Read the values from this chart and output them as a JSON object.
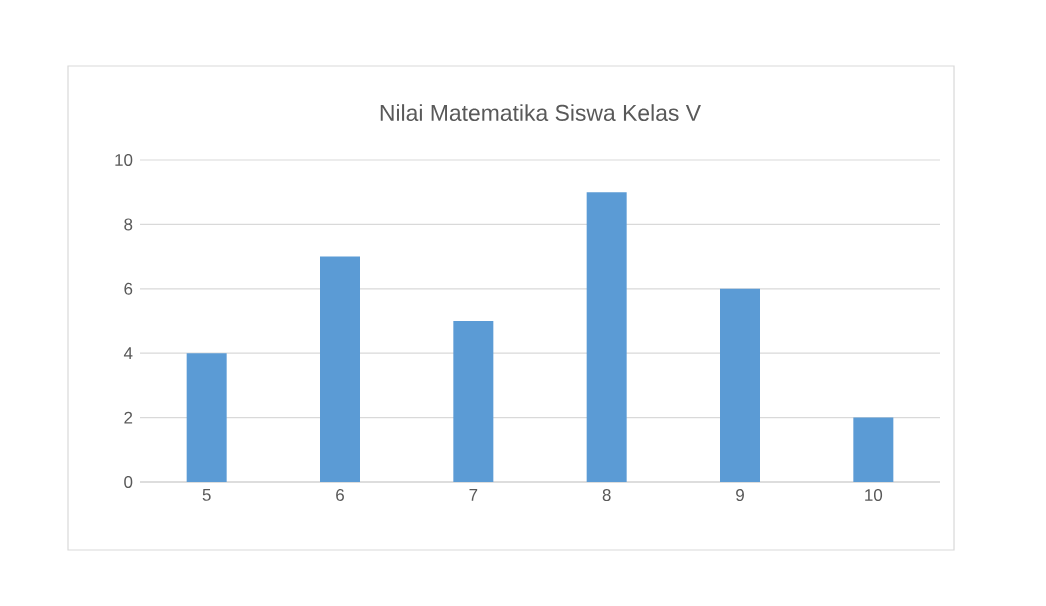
{
  "chart_data": {
    "type": "bar",
    "title": "Nilai Matematika Siswa Kelas V",
    "categories": [
      "5",
      "6",
      "7",
      "8",
      "9",
      "10"
    ],
    "values": [
      4,
      7,
      5,
      9,
      6,
      2
    ],
    "color": "#5b9bd5",
    "ylim": [
      0,
      10
    ],
    "yticks": [
      0,
      2,
      4,
      6,
      8,
      10
    ],
    "grid": "y"
  }
}
